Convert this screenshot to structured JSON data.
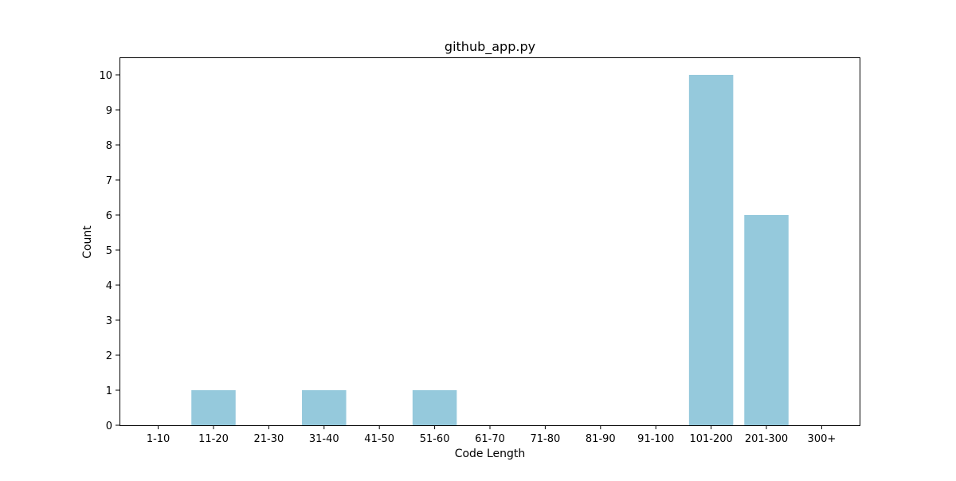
{
  "chart_data": {
    "type": "bar",
    "title": "github_app.py",
    "xlabel": "Code Length",
    "ylabel": "Count",
    "categories": [
      "1-10",
      "11-20",
      "21-30",
      "31-40",
      "41-50",
      "51-60",
      "61-70",
      "71-80",
      "81-90",
      "91-100",
      "101-200",
      "201-300",
      "300+"
    ],
    "values": [
      0,
      1,
      0,
      1,
      0,
      1,
      0,
      0,
      0,
      0,
      10,
      6,
      0
    ],
    "ylim": [
      0,
      10.5
    ],
    "yticks": [
      0,
      1,
      2,
      3,
      4,
      5,
      6,
      7,
      8,
      9,
      10
    ],
    "grid": false,
    "legend": "none",
    "bar_color": "#95c9dc"
  }
}
